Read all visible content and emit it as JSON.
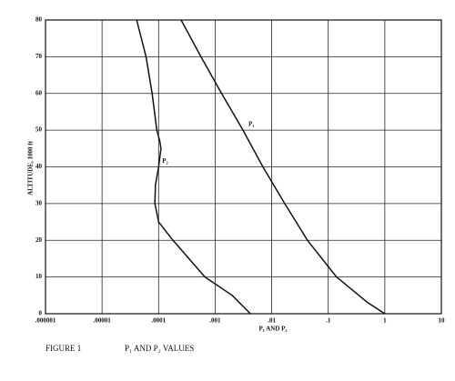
{
  "chart_data": {
    "type": "line",
    "xscale": "log",
    "xlabel": "P₁ AND P₂",
    "ylabel": "ALTITUDE, 1000 ft",
    "figure_label": "FIGURE 1",
    "caption": "P₁ AND P₂ VALUES",
    "xlim": [
      1e-06,
      10
    ],
    "ylim": [
      0,
      80
    ],
    "xticks": [
      {
        "value": 1e-06,
        "label": ".000001"
      },
      {
        "value": 1e-05,
        "label": ".00001"
      },
      {
        "value": 0.0001,
        "label": ".0001"
      },
      {
        "value": 0.001,
        "label": ".001"
      },
      {
        "value": 0.01,
        "label": ".01"
      },
      {
        "value": 0.1,
        "label": ".1"
      },
      1,
      10
    ],
    "yticks": [
      0,
      10,
      20,
      30,
      40,
      50,
      60,
      70,
      80
    ],
    "grid": true,
    "series": [
      {
        "name": "P₁",
        "color": "#111111",
        "x": [
          1,
          0.5,
          0.14,
          0.043,
          0.017,
          0.007,
          0.0031,
          0.0013,
          0.00056,
          0.00025
        ],
        "values": [
          0,
          3,
          10,
          20,
          30,
          40,
          50,
          60,
          70,
          80
        ]
      },
      {
        "name": "P₂",
        "color": "#111111",
        "x": [
          0.0042,
          0.002,
          0.00066,
          0.00018,
          0.0001,
          8.6e-05,
          8.8e-05,
          0.0001,
          0.00011,
          0.000105,
          9.3e-05,
          7.7e-05,
          6e-05,
          4.1e-05
        ],
        "values": [
          0,
          5,
          10,
          20,
          25,
          30,
          35,
          40,
          45,
          47,
          50,
          60,
          70,
          80
        ]
      }
    ]
  }
}
